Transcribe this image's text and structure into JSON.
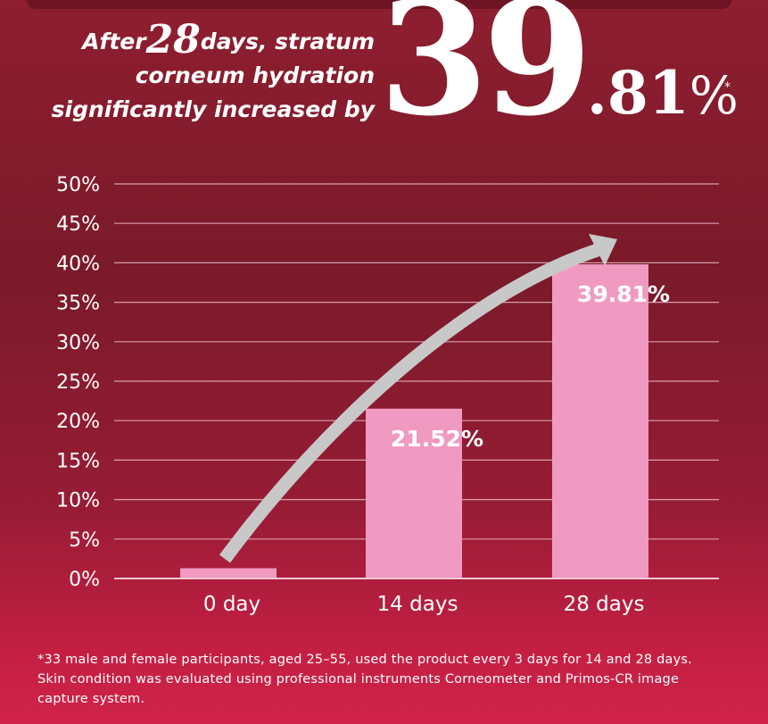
{
  "headline": {
    "prefix": "After",
    "days": "28",
    "line1_rest": "days, stratum",
    "line2": "corneum hydration",
    "line3": "significantly increased by",
    "hero_int": "39",
    "hero_frac": ".81",
    "hero_pct": "%",
    "hero_star": "*"
  },
  "chart_data": {
    "type": "bar",
    "categories": [
      "0 day",
      "14 days",
      "28 days"
    ],
    "values": [
      1.3,
      21.52,
      39.81
    ],
    "data_labels": [
      "",
      "21.52%",
      "39.81%"
    ],
    "ylim": [
      0,
      50
    ],
    "yticks": [
      0,
      5,
      10,
      15,
      20,
      25,
      30,
      35,
      40,
      45,
      50
    ],
    "ytick_labels": [
      "0%",
      "5%",
      "10%",
      "15%",
      "20%",
      "25%",
      "30%",
      "35%",
      "40%",
      "45%",
      "50%"
    ],
    "grid": true,
    "bar_color": "#f09ac2",
    "arrow_color": "#c8c8c8"
  },
  "footnote": {
    "line1": "*33 male and female participants, aged 25–55, used the product every 3 days for 14 and 28 days.",
    "line2": "Skin condition was evaluated using professional instruments Corneometer and Primos-CR image",
    "line3": "capture system."
  }
}
